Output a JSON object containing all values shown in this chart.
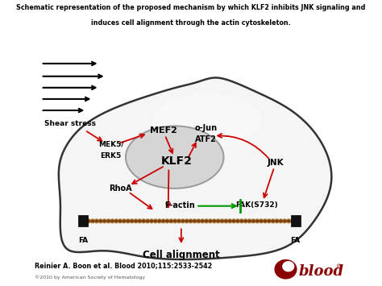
{
  "title_line1": "Schematic representation of the proposed mechanism by which KLF2 inhibits JNK signaling and",
  "title_line2": "induces cell alignment through the actin cytoskeleton.",
  "citation": "Reinier A. Boon et al. Blood 2010;115:2533-2542",
  "copyright": "©2010 by American Society of Hematology",
  "background_color": "#ffffff",
  "red": "#cc0000",
  "green": "#009900",
  "black": "#000000",
  "blood_red": "#8b0000"
}
